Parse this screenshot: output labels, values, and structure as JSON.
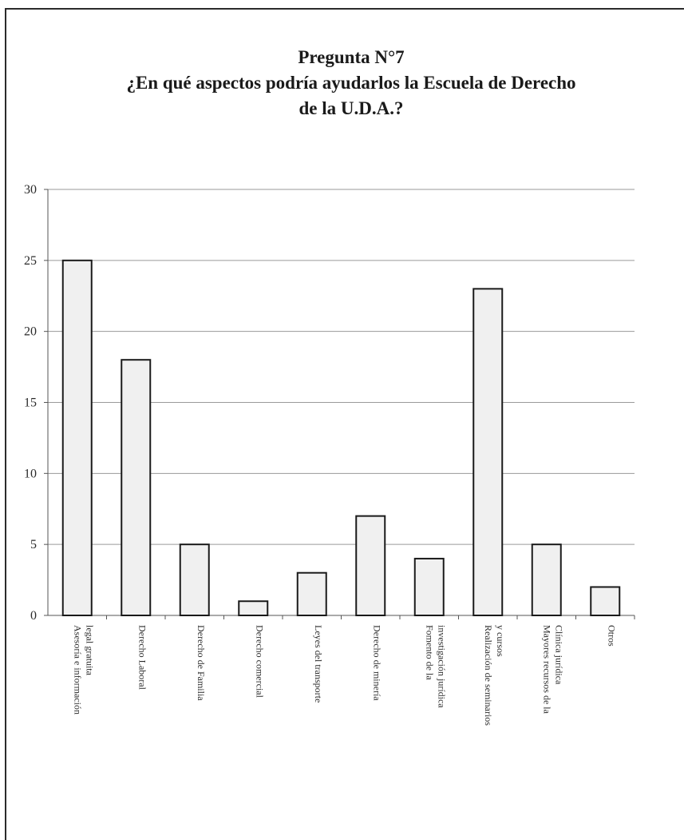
{
  "chart_data": {
    "type": "bar",
    "title_lines": [
      "Pregunta N°7",
      "¿En qué aspectos podría ayudarlos la Escuela de Derecho",
      "de la U.D.A.?"
    ],
    "categories": [
      [
        "Asesoría e información",
        "legal gratuita"
      ],
      [
        "Derecho Laboral"
      ],
      [
        "Derecho de Familia"
      ],
      [
        "Derecho comercial"
      ],
      [
        "Leyes del transporte"
      ],
      [
        "Derecho de minería"
      ],
      [
        "Fomento de la",
        "investigación jurídica"
      ],
      [
        "Realización de seminarios",
        "y cursos"
      ],
      [
        "Mayores recursos de la",
        "Clínica jurídica"
      ],
      [
        "Otros"
      ]
    ],
    "values": [
      25,
      18,
      5,
      1,
      3,
      7,
      4,
      23,
      5,
      2
    ],
    "ylim": [
      0,
      30
    ],
    "yticks": [
      0,
      5,
      10,
      15,
      20,
      25,
      30
    ],
    "grid": true,
    "legend": "none",
    "colors": {
      "bar_fill": "#f0f0f0",
      "bar_stroke": "#1a1a1a",
      "grid": "#9a9a9a",
      "axis": "#555555"
    }
  }
}
